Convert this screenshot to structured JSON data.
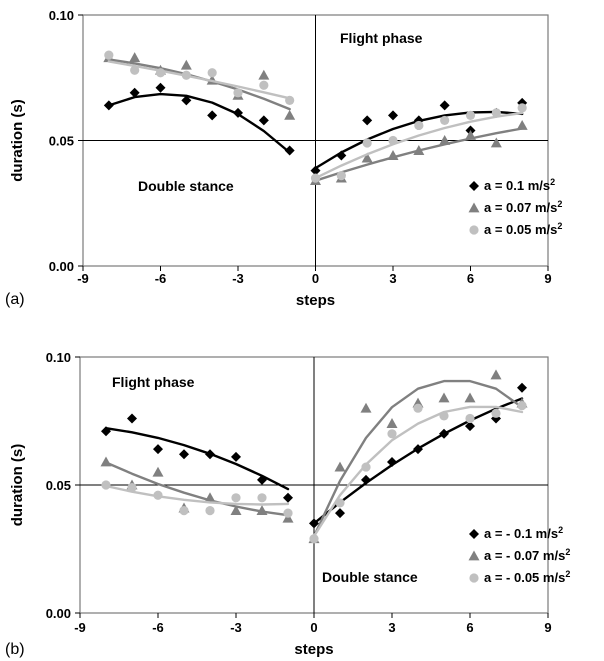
{
  "chart_data": [
    {
      "panel_label": "(a)",
      "type": "scatter",
      "xlabel": "steps",
      "ylabel": "duration (s)",
      "xlim": [
        -9,
        9
      ],
      "ylim": [
        0,
        0.1
      ],
      "xticks": [
        "-9",
        "-6",
        "-3",
        "0",
        "3",
        "6",
        "9"
      ],
      "yticks": [
        "0.00",
        "0.05",
        "0.10"
      ],
      "annotations": {
        "top_right": "Flight phase",
        "bottom_left": "Double stance"
      },
      "legend_position": "right",
      "series": [
        {
          "name": "a = 0.1 m/s",
          "superscript": "2",
          "marker": "diamond",
          "color": "#000000",
          "points": [
            [
              -8,
              0.064
            ],
            [
              -7,
              0.069
            ],
            [
              -6,
              0.071
            ],
            [
              -5,
              0.066
            ],
            [
              -4,
              0.06
            ],
            [
              -3,
              0.061
            ],
            [
              -2,
              0.058
            ],
            [
              -1,
              0.046
            ],
            [
              0,
              0.038
            ],
            [
              1,
              0.044
            ],
            [
              2,
              0.058
            ],
            [
              3,
              0.06
            ],
            [
              4,
              0.058
            ],
            [
              5,
              0.064
            ],
            [
              6,
              0.054
            ],
            [
              7,
              0.061
            ],
            [
              8,
              0.065
            ]
          ],
          "fit_left": [
            [
              -8,
              0.064
            ],
            [
              -7,
              0.0673
            ],
            [
              -6,
              0.0685
            ],
            [
              -5,
              0.0678
            ],
            [
              -4,
              0.0651
            ],
            [
              -3,
              0.0605
            ],
            [
              -2,
              0.0538
            ],
            [
              -1,
              0.0452
            ]
          ],
          "fit_right": [
            [
              0,
              0.039
            ],
            [
              1,
              0.0452
            ],
            [
              2,
              0.0504
            ],
            [
              3,
              0.0546
            ],
            [
              4,
              0.0578
            ],
            [
              5,
              0.06
            ],
            [
              6,
              0.0612
            ],
            [
              7,
              0.0614
            ],
            [
              8,
              0.0606
            ]
          ]
        },
        {
          "name": "a = 0.07 m/s",
          "superscript": "2",
          "marker": "triangle",
          "color": "#808080",
          "points": [
            [
              -8,
              0.083
            ],
            [
              -7,
              0.083
            ],
            [
              -6,
              0.078
            ],
            [
              -5,
              0.08
            ],
            [
              -4,
              0.074
            ],
            [
              -3,
              0.068
            ],
            [
              -2,
              0.076
            ],
            [
              -1,
              0.06
            ],
            [
              0,
              0.034
            ],
            [
              1,
              0.035
            ],
            [
              2,
              0.043
            ],
            [
              3,
              0.044
            ],
            [
              4,
              0.046
            ],
            [
              5,
              0.05
            ],
            [
              6,
              0.052
            ],
            [
              7,
              0.049
            ],
            [
              8,
              0.056
            ]
          ],
          "fit_left": [
            [
              -8,
              0.0823
            ],
            [
              -7,
              0.0807
            ],
            [
              -6,
              0.0788
            ],
            [
              -5,
              0.0764
            ],
            [
              -4,
              0.0735
            ],
            [
              -3,
              0.0703
            ],
            [
              -2,
              0.0666
            ],
            [
              -1,
              0.0625
            ]
          ],
          "fit_right": [
            [
              0,
              0.034
            ],
            [
              1,
              0.0373
            ],
            [
              2,
              0.0404
            ],
            [
              3,
              0.0433
            ],
            [
              4,
              0.046
            ],
            [
              5,
              0.0485
            ],
            [
              6,
              0.0508
            ],
            [
              7,
              0.0529
            ],
            [
              8,
              0.0548
            ]
          ]
        },
        {
          "name": "a = 0.05 m/s",
          "superscript": "2",
          "marker": "circle",
          "color": "#c0c0c0",
          "points": [
            [
              -8,
              0.084
            ],
            [
              -7,
              0.078
            ],
            [
              -6,
              0.077
            ],
            [
              -5,
              0.076
            ],
            [
              -4,
              0.077
            ],
            [
              -3,
              0.069
            ],
            [
              -2,
              0.072
            ],
            [
              -1,
              0.066
            ],
            [
              0,
              0.035
            ],
            [
              1,
              0.036
            ],
            [
              2,
              0.049
            ],
            [
              3,
              0.05
            ],
            [
              4,
              0.056
            ],
            [
              5,
              0.058
            ],
            [
              6,
              0.06
            ],
            [
              7,
              0.061
            ],
            [
              8,
              0.063
            ]
          ],
          "fit_left": [
            [
              -8,
              0.0815
            ],
            [
              -7,
              0.0797
            ],
            [
              -6,
              0.0778
            ],
            [
              -5,
              0.0758
            ],
            [
              -4,
              0.0737
            ],
            [
              -3,
              0.0715
            ],
            [
              -2,
              0.0692
            ],
            [
              -1,
              0.0668
            ]
          ],
          "fit_right": [
            [
              0,
              0.035
            ],
            [
              1,
              0.04
            ],
            [
              2,
              0.0445
            ],
            [
              3,
              0.0485
            ],
            [
              4,
              0.052
            ],
            [
              5,
              0.055
            ],
            [
              6,
              0.0575
            ],
            [
              7,
              0.0595
            ],
            [
              8,
              0.061
            ]
          ]
        }
      ]
    },
    {
      "panel_label": "(b)",
      "type": "scatter",
      "xlabel": "steps",
      "ylabel": "duration (s)",
      "xlim": [
        -9,
        9
      ],
      "ylim": [
        0,
        0.1
      ],
      "xticks": [
        "-9",
        "-6",
        "-3",
        "0",
        "3",
        "6",
        "9"
      ],
      "yticks": [
        "0.00",
        "0.05",
        "0.10"
      ],
      "annotations": {
        "top_left": "Flight phase",
        "bottom_right": "Double stance"
      },
      "legend_position": "right",
      "series": [
        {
          "name": "a = - 0.1 m/s",
          "superscript": "2",
          "marker": "diamond",
          "color": "#000000",
          "points": [
            [
              -8,
              0.071
            ],
            [
              -7,
              0.076
            ],
            [
              -6,
              0.064
            ],
            [
              -5,
              0.062
            ],
            [
              -4,
              0.062
            ],
            [
              -3,
              0.061
            ],
            [
              -2,
              0.052
            ],
            [
              -1,
              0.045
            ],
            [
              0,
              0.035
            ],
            [
              1,
              0.039
            ],
            [
              2,
              0.052
            ],
            [
              3,
              0.059
            ],
            [
              4,
              0.064
            ],
            [
              5,
              0.07
            ],
            [
              6,
              0.073
            ],
            [
              7,
              0.076
            ],
            [
              8,
              0.088
            ]
          ],
          "fit_left": [
            [
              -8,
              0.0722
            ],
            [
              -7,
              0.0706
            ],
            [
              -6,
              0.0684
            ],
            [
              -5,
              0.0656
            ],
            [
              -4,
              0.0622
            ],
            [
              -3,
              0.0582
            ],
            [
              -2,
              0.0536
            ],
            [
              -1,
              0.0484
            ]
          ],
          "fit_right": [
            [
              0,
              0.035
            ],
            [
              1,
              0.0432
            ],
            [
              2,
              0.0508
            ],
            [
              3,
              0.0578
            ],
            [
              4,
              0.0642
            ],
            [
              5,
              0.07
            ],
            [
              6,
              0.0752
            ],
            [
              7,
              0.0798
            ],
            [
              8,
              0.0838
            ]
          ]
        },
        {
          "name": "a = - 0.07 m/s",
          "superscript": "2",
          "marker": "triangle",
          "color": "#808080",
          "points": [
            [
              -8,
              0.059
            ],
            [
              -7,
              0.05
            ],
            [
              -6,
              0.055
            ],
            [
              -5,
              0.041
            ],
            [
              -4,
              0.045
            ],
            [
              -3,
              0.04
            ],
            [
              -2,
              0.04
            ],
            [
              -1,
              0.037
            ],
            [
              0,
              0.029
            ],
            [
              1,
              0.057
            ],
            [
              2,
              0.08
            ],
            [
              3,
              0.074
            ],
            [
              4,
              0.082
            ],
            [
              5,
              0.084
            ],
            [
              6,
              0.084
            ],
            [
              7,
              0.093
            ],
            [
              8,
              0.082
            ]
          ],
          "fit_left": [
            [
              -8,
              0.0588
            ],
            [
              -7,
              0.0544
            ],
            [
              -6,
              0.0504
            ],
            [
              -5,
              0.047
            ],
            [
              -4,
              0.044
            ],
            [
              -3,
              0.0416
            ],
            [
              -2,
              0.0396
            ],
            [
              -1,
              0.0382
            ]
          ],
          "fit_right": [
            [
              0,
              0.03
            ],
            [
              1,
              0.0516
            ],
            [
              2,
              0.0684
            ],
            [
              3,
              0.0804
            ],
            [
              4,
              0.0876
            ],
            [
              5,
              0.0906
            ],
            [
              6,
              0.0906
            ],
            [
              7,
              0.0876
            ],
            [
              8,
              0.0804
            ]
          ]
        },
        {
          "name": "a = - 0.05 m/s",
          "superscript": "2",
          "marker": "circle",
          "color": "#c0c0c0",
          "points": [
            [
              -8,
              0.05
            ],
            [
              -7,
              0.049
            ],
            [
              -6,
              0.046
            ],
            [
              -5,
              0.04
            ],
            [
              -4,
              0.04
            ],
            [
              -3,
              0.045
            ],
            [
              -2,
              0.045
            ],
            [
              -1,
              0.039
            ],
            [
              0,
              0.029
            ],
            [
              1,
              0.043
            ],
            [
              2,
              0.057
            ],
            [
              3,
              0.07
            ],
            [
              4,
              0.08
            ],
            [
              5,
              0.077
            ],
            [
              6,
              0.076
            ],
            [
              7,
              0.078
            ],
            [
              8,
              0.081
            ]
          ],
          "fit_left": [
            [
              -8,
              0.0496
            ],
            [
              -7,
              0.0474
            ],
            [
              -6,
              0.0456
            ],
            [
              -5,
              0.0442
            ],
            [
              -4,
              0.0432
            ],
            [
              -3,
              0.0426
            ],
            [
              -2,
              0.0424
            ],
            [
              -1,
              0.0426
            ]
          ],
          "fit_right": [
            [
              0,
              0.03
            ],
            [
              1,
              0.046
            ],
            [
              2,
              0.058
            ],
            [
              3,
              0.0675
            ],
            [
              4,
              0.074
            ],
            [
              5,
              0.0785
            ],
            [
              6,
              0.0805
            ],
            [
              7,
              0.0805
            ],
            [
              8,
              0.0785
            ]
          ]
        }
      ]
    }
  ]
}
